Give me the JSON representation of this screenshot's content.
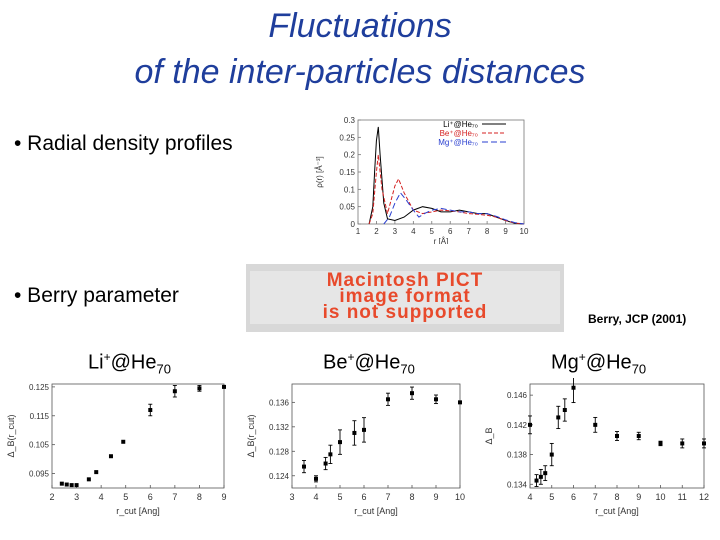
{
  "slide": {
    "title_line1": "Fluctuations",
    "title_line2": "of the inter-particles distances",
    "bullet_radial": "• Radial density profiles",
    "bullet_berry": "• Berry parameter",
    "pict_placeholder": [
      "Macintosh PICT",
      "image format",
      "is not supported"
    ],
    "citation": "Berry, JCP (2001)",
    "ions": [
      {
        "pre": "Li",
        "sup": "+",
        "mid": "@He",
        "sub": "70"
      },
      {
        "pre": "Be",
        "sup": "+",
        "mid": "@He",
        "sub": "70"
      },
      {
        "pre": "Mg",
        "sup": "+",
        "mid": "@He",
        "sub": "70"
      }
    ],
    "colors": {
      "title": "#1f3e9c",
      "pict_text": "#e84a2c"
    }
  },
  "chart_data": [
    {
      "type": "line",
      "xlabel": "r [Å]",
      "ylabel": "ρ(r) [Å⁻³]",
      "xlim": [
        1,
        10
      ],
      "ylim": [
        0,
        0.3
      ],
      "x_ticks": [
        "1",
        "2",
        "3",
        "4",
        "5",
        "6",
        "7",
        "8",
        "9",
        "10"
      ],
      "y_ticks": [
        "0",
        "0.05",
        "0.1",
        "0.15",
        "0.2",
        "0.25",
        "0.3"
      ],
      "legend_position": "top-right",
      "series": [
        {
          "name": "Li⁺@He₇₀",
          "color": "#000000",
          "dash": "",
          "x": [
            1.6,
            1.8,
            1.9,
            2.0,
            2.1,
            2.2,
            2.4,
            2.6,
            3.0,
            3.5,
            4.0,
            4.5,
            5.0,
            5.5,
            6.0,
            6.5,
            7.0,
            7.5,
            8.0,
            8.5,
            9.0,
            9.5,
            10.0
          ],
          "y": [
            0,
            0.05,
            0.15,
            0.24,
            0.28,
            0.2,
            0.06,
            0.015,
            0.01,
            0.02,
            0.04,
            0.05,
            0.045,
            0.035,
            0.035,
            0.04,
            0.035,
            0.03,
            0.03,
            0.02,
            0.01,
            0.002,
            0
          ]
        },
        {
          "name": "Be⁺@He₇₀",
          "color": "#d42020",
          "dash": "4,2",
          "x": [
            1.6,
            1.8,
            2.0,
            2.1,
            2.3,
            2.6,
            3.0,
            3.2,
            3.5,
            4.0,
            4.5,
            5.0,
            5.5,
            6.0,
            6.5,
            7.0,
            7.5,
            8.0,
            8.5,
            9.0,
            9.5,
            10.0
          ],
          "y": [
            0,
            0.03,
            0.15,
            0.2,
            0.1,
            0.03,
            0.11,
            0.13,
            0.09,
            0.04,
            0.03,
            0.035,
            0.04,
            0.038,
            0.035,
            0.03,
            0.028,
            0.025,
            0.02,
            0.01,
            0.003,
            0
          ]
        },
        {
          "name": "Mg⁺@He₇₀",
          "color": "#2a3fd0",
          "dash": "6,3",
          "x": [
            2.4,
            2.7,
            3.0,
            3.3,
            3.6,
            4.0,
            4.3,
            4.6,
            5.0,
            5.5,
            6.0,
            6.5,
            7.0,
            7.5,
            8.0,
            8.5,
            9.0,
            9.5,
            10.0
          ],
          "y": [
            0,
            0.02,
            0.06,
            0.09,
            0.07,
            0.04,
            0.02,
            0.03,
            0.04,
            0.045,
            0.04,
            0.035,
            0.035,
            0.03,
            0.03,
            0.022,
            0.012,
            0.004,
            0
          ]
        }
      ]
    },
    {
      "type": "scatter",
      "title": "Li⁺@He₇₀",
      "xlabel": "r_cut [Ang]",
      "ylabel": "Δ_B(r_cut)",
      "xlim": [
        2,
        9
      ],
      "ylim": [
        0.09,
        0.126
      ],
      "x_ticks": [
        "2",
        "3",
        "4",
        "5",
        "6",
        "7",
        "8",
        "9"
      ],
      "y_ticks": [
        "0.095",
        "0.105",
        "0.115",
        "0.125"
      ],
      "x": [
        2.4,
        2.6,
        2.8,
        3.0,
        3.5,
        3.8,
        4.4,
        4.9,
        6.0,
        7.0,
        8.0,
        9.0
      ],
      "y": [
        0.0915,
        0.0912,
        0.091,
        0.091,
        0.093,
        0.0955,
        0.101,
        0.106,
        0.117,
        0.1235,
        0.1245,
        0.125
      ],
      "err": [
        0,
        0,
        0,
        0,
        0,
        0,
        0,
        0,
        0.002,
        0.002,
        0.001,
        0
      ]
    },
    {
      "type": "scatter",
      "title": "Be⁺@He₇₀",
      "xlabel": "r_cut [Ang]",
      "ylabel": "Δ_B(r_cut)",
      "xlim": [
        3,
        10
      ],
      "ylim": [
        0.122,
        0.139
      ],
      "x_ticks": [
        "3",
        "4",
        "5",
        "6",
        "7",
        "8",
        "9",
        "10"
      ],
      "y_ticks": [
        "0.124",
        "0.128",
        "0.132",
        "0.136"
      ],
      "x": [
        3.5,
        4.0,
        4.4,
        4.6,
        5.0,
        5.6,
        6.0,
        7.0,
        8.0,
        9.0,
        10.0
      ],
      "y": [
        0.1255,
        0.1235,
        0.126,
        0.1275,
        0.1295,
        0.131,
        0.1315,
        0.1365,
        0.1375,
        0.1365,
        0.136
      ],
      "err": [
        0.001,
        0.0005,
        0.001,
        0.0015,
        0.002,
        0.002,
        0.002,
        0.001,
        0.001,
        0.0007,
        0
      ]
    },
    {
      "type": "scatter",
      "title": "Mg⁺@He₇₀",
      "xlabel": "r_cut [Ang]",
      "ylabel": "Δ_B",
      "xlim": [
        4,
        12
      ],
      "ylim": [
        0.1335,
        0.1475
      ],
      "x_ticks": [
        "4",
        "5",
        "6",
        "7",
        "8",
        "9",
        "10",
        "11",
        "12"
      ],
      "y_ticks": [
        "0.134",
        "0.138",
        "0.142",
        "0.146"
      ],
      "x": [
        4.0,
        4.3,
        4.5,
        4.7,
        5.0,
        5.3,
        5.6,
        6.0,
        7.0,
        8.0,
        9.0,
        10.0,
        11.0,
        12.0
      ],
      "y": [
        0.142,
        0.1345,
        0.135,
        0.1355,
        0.138,
        0.143,
        0.144,
        0.147,
        0.142,
        0.1405,
        0.1405,
        0.1395,
        0.1395,
        0.1395
      ],
      "err": [
        0.0012,
        0.0008,
        0.001,
        0.001,
        0.0015,
        0.0015,
        0.0015,
        0.002,
        0.001,
        0.0006,
        0.0005,
        0.0003,
        0.0006,
        0.0006
      ]
    }
  ]
}
